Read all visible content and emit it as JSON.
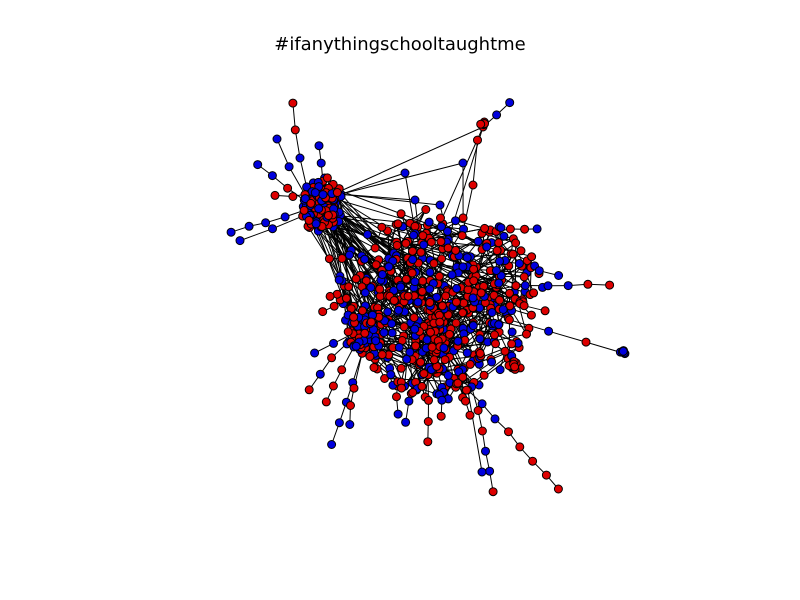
{
  "figure": {
    "title": "#ifanythingschooltaught​me"
  },
  "graph": {
    "node_colors": {
      "class_a": "#0000dd",
      "class_b": "#dd0000"
    },
    "edge_color": "#000000",
    "node_outline_color": "#000000"
  }
}
